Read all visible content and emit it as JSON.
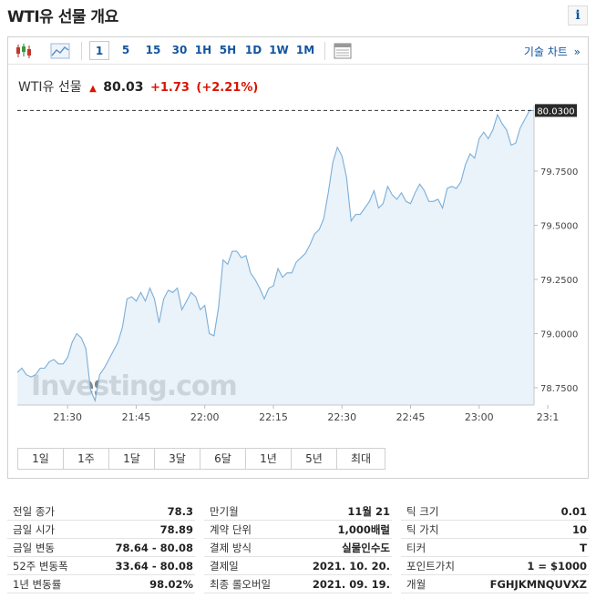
{
  "title": "WTI유 선물 개요",
  "info_icon": "i",
  "toolbar": {
    "intervals": [
      "1",
      "5",
      "15",
      "30",
      "1H",
      "5H",
      "1D",
      "1W",
      "1M"
    ],
    "active_interval": "1",
    "tech_chart_label": "기술 차트",
    "tech_chart_arrow": "»"
  },
  "quote": {
    "name": "WTI유 선물",
    "price": "80.03",
    "change": "+1.73",
    "change_pct": "(+2.21%)",
    "up_color": "#d91400"
  },
  "chart_data": {
    "type": "area",
    "title": "",
    "xlabel": "",
    "ylabel": "",
    "x_ticks": [
      "21:30",
      "21:45",
      "22:00",
      "22:15",
      "22:30",
      "22:45",
      "23:00",
      "23:1"
    ],
    "y_ticks": [
      "79.7500",
      "79.5000",
      "79.2500",
      "79.0000",
      "78.7500"
    ],
    "y_tick_values": [
      79.75,
      79.5,
      79.25,
      79.0,
      78.75
    ],
    "ylim": [
      78.67,
      80.04
    ],
    "last_price_label": "80.0300",
    "last_price": 80.03,
    "series_color": "#7aaed8",
    "fill_color": "#e3eef8",
    "watermark": "Investing.com",
    "x": [
      0,
      1,
      2,
      3,
      4,
      5,
      6,
      7,
      8,
      9,
      10,
      11,
      12,
      13,
      14,
      15,
      16,
      17,
      18,
      19,
      20,
      21,
      22,
      23,
      24,
      25,
      26,
      27,
      28,
      29,
      30,
      31,
      32,
      33,
      34,
      35,
      36,
      37,
      38,
      39,
      40,
      41,
      42,
      43,
      44,
      45,
      46,
      47,
      48,
      49,
      50,
      51,
      52,
      53,
      54,
      55,
      56,
      57,
      58,
      59,
      60,
      61,
      62,
      63,
      64,
      65,
      66,
      67,
      68,
      69,
      70,
      71,
      72,
      73,
      74,
      75,
      76,
      77,
      78,
      79,
      80,
      81,
      82,
      83,
      84,
      85,
      86,
      87,
      88,
      89,
      90,
      91,
      92,
      93,
      94,
      95,
      96,
      97,
      98,
      99,
      100,
      101,
      102,
      103,
      104,
      105,
      106,
      107,
      108,
      109,
      110,
      111,
      112,
      113
    ],
    "values": [
      78.82,
      78.84,
      78.81,
      78.8,
      78.81,
      78.84,
      78.84,
      78.87,
      78.88,
      78.86,
      78.86,
      78.89,
      78.96,
      79.0,
      78.98,
      78.93,
      78.74,
      78.69,
      78.81,
      78.84,
      78.88,
      78.92,
      78.96,
      79.03,
      79.16,
      79.17,
      79.15,
      79.19,
      79.15,
      79.21,
      79.16,
      79.05,
      79.16,
      79.2,
      79.19,
      79.21,
      79.11,
      79.15,
      79.19,
      79.17,
      79.11,
      79.13,
      79.0,
      78.99,
      79.12,
      79.34,
      79.32,
      79.38,
      79.38,
      79.35,
      79.36,
      79.28,
      79.25,
      79.21,
      79.16,
      79.21,
      79.22,
      79.3,
      79.26,
      79.28,
      79.28,
      79.33,
      79.35,
      79.37,
      79.41,
      79.46,
      79.48,
      79.53,
      79.65,
      79.79,
      79.86,
      79.82,
      79.72,
      79.52,
      79.55,
      79.55,
      79.58,
      79.61,
      79.66,
      79.58,
      79.6,
      79.68,
      79.64,
      79.62,
      79.65,
      79.61,
      79.6,
      79.65,
      79.69,
      79.66,
      79.61,
      79.61,
      79.62,
      79.58,
      79.67,
      79.68,
      79.67,
      79.7,
      79.78,
      79.83,
      79.81,
      79.9,
      79.93,
      79.9,
      79.94,
      80.01,
      79.97,
      79.94,
      79.87,
      79.88,
      79.95,
      79.99,
      80.03,
      80.03
    ]
  },
  "ranges": [
    "1일",
    "1주",
    "1달",
    "3달",
    "6달",
    "1년",
    "5년",
    "최대"
  ],
  "stats": {
    "col1": [
      {
        "label": "전일 종가",
        "value": "78.3"
      },
      {
        "label": "금일 시가",
        "value": "78.89"
      },
      {
        "label": "금일 변동",
        "value": "78.64 - 80.08"
      },
      {
        "label": "52주 변동폭",
        "value": "33.64 - 80.08"
      },
      {
        "label": "1년 변동률",
        "value": "98.02%"
      }
    ],
    "col2": [
      {
        "label": "만기월",
        "value": "11월 21"
      },
      {
        "label": "계약 단위",
        "value": "1,000배럴"
      },
      {
        "label": "결제 방식",
        "value": "실물인수도"
      },
      {
        "label": "결제일",
        "value": "2021. 10. 20."
      },
      {
        "label": "최종 롤오버일",
        "value": "2021. 09. 19."
      }
    ],
    "col3": [
      {
        "label": "틱 크기",
        "value": "0.01"
      },
      {
        "label": "틱 가치",
        "value": "10"
      },
      {
        "label": "티커",
        "value": "T"
      },
      {
        "label": "포인트가치",
        "value": "1 = $1000"
      },
      {
        "label": "개월",
        "value": "FGHJKMNQUVXZ"
      }
    ]
  }
}
